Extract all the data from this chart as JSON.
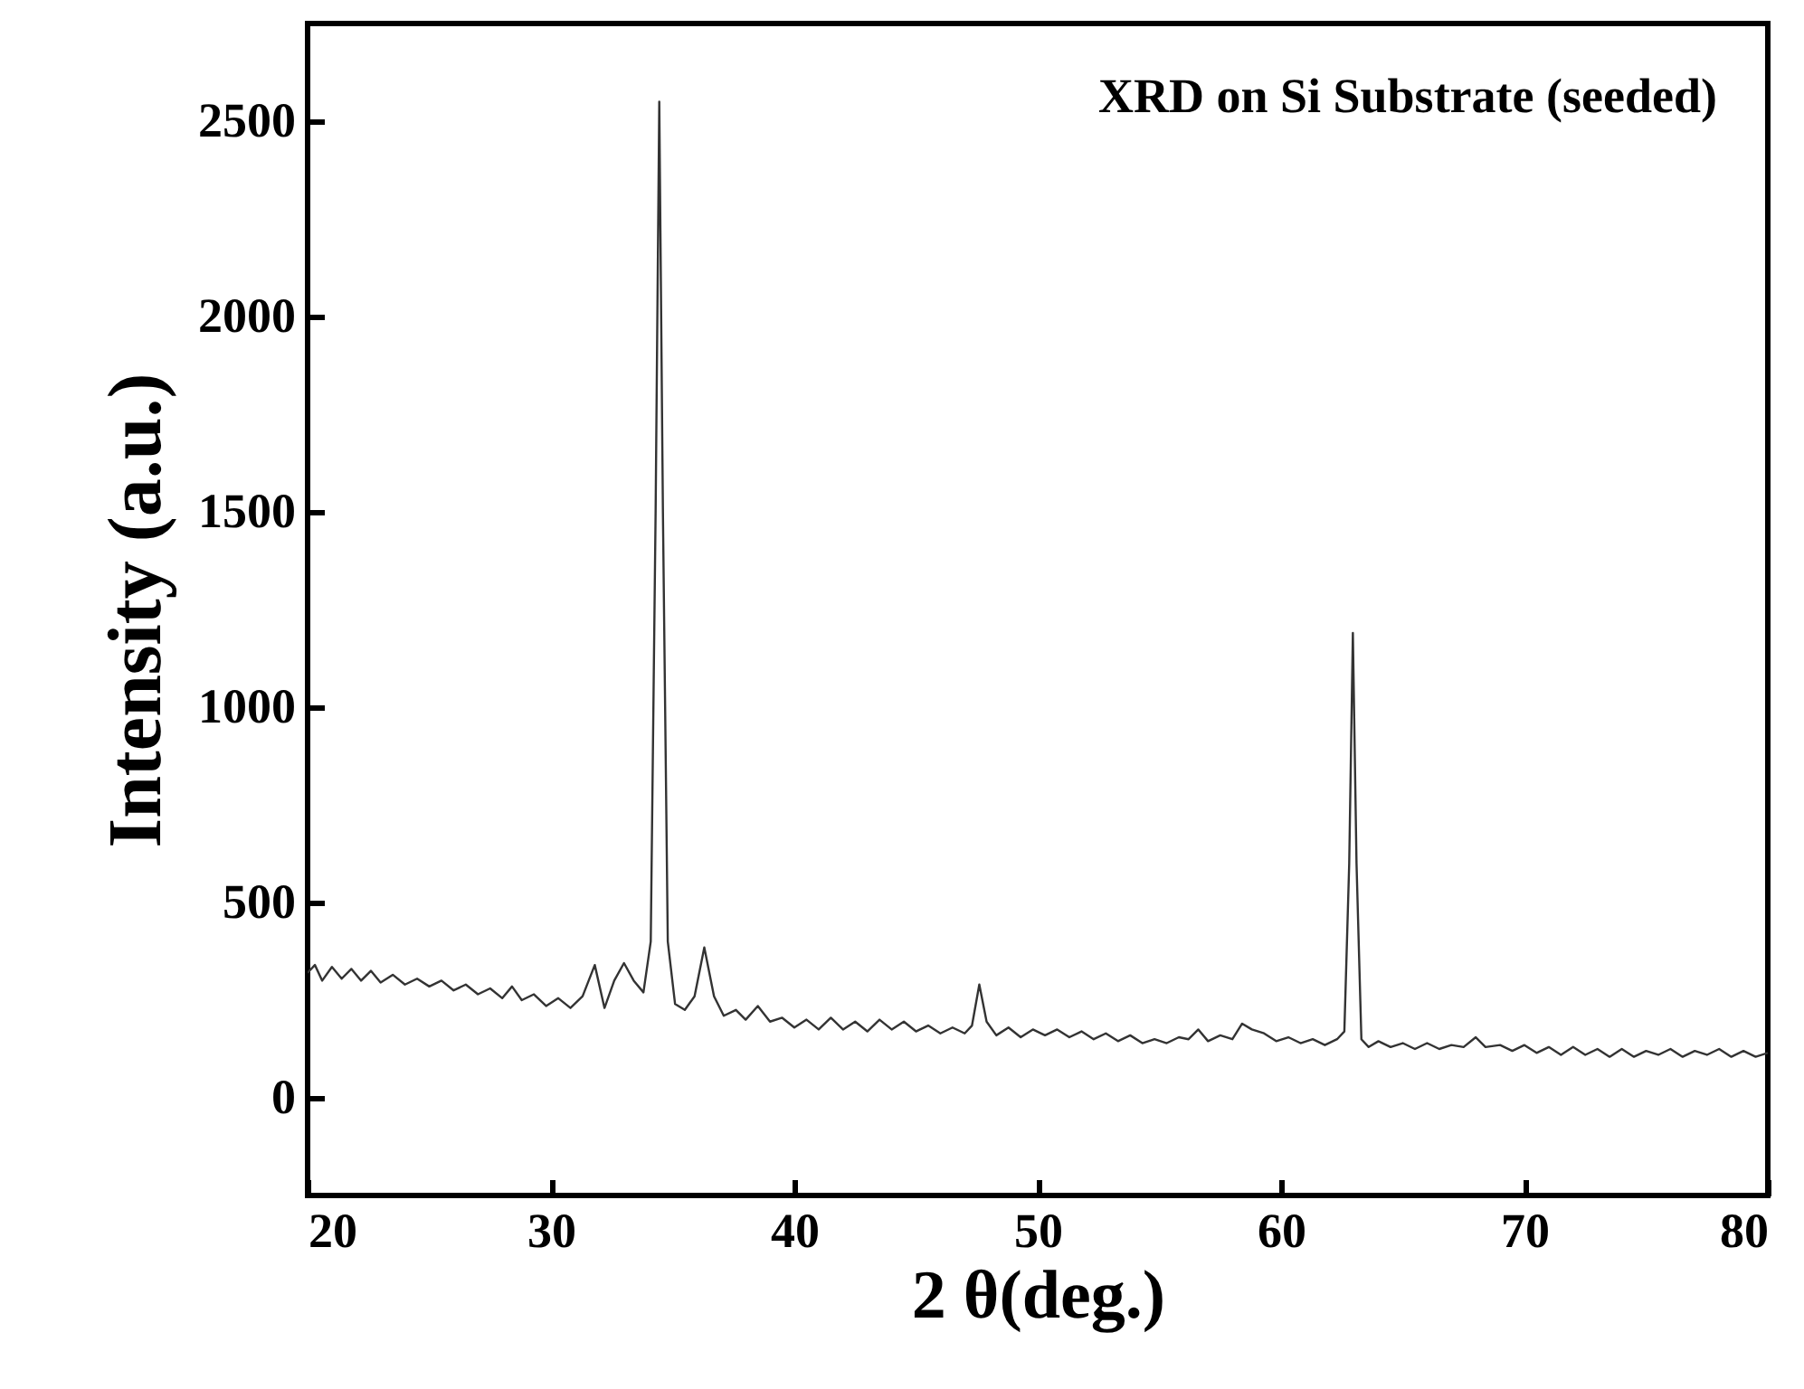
{
  "chart_data": {
    "type": "line",
    "xlabel": "2 θ(deg.)",
    "ylabel": "Intensity (a.u.)",
    "annotations": [
      "XRD on Si Substrate (seeded)"
    ],
    "xlim": [
      20,
      80
    ],
    "xticks": [
      20,
      30,
      40,
      50,
      60,
      70,
      80
    ],
    "ylim": [
      -250,
      2750
    ],
    "yticks": [
      0,
      500,
      1000,
      1500,
      2000,
      2500
    ],
    "series": [
      {
        "color": "#333333",
        "x": [
          20,
          20.3,
          20.6,
          21,
          21.4,
          21.8,
          22.2,
          22.6,
          23,
          23.5,
          24,
          24.5,
          25,
          25.5,
          26,
          26.5,
          27,
          27.5,
          28,
          28.4,
          28.8,
          29.3,
          29.8,
          30.3,
          30.8,
          31.3,
          31.8,
          32.2,
          32.6,
          33,
          33.4,
          33.8,
          34.1,
          34.3,
          34.45,
          34.6,
          34.8,
          35.1,
          35.5,
          35.9,
          36.3,
          36.7,
          37.1,
          37.6,
          38,
          38.5,
          39,
          39.5,
          40,
          40.5,
          41,
          41.5,
          42,
          42.5,
          43,
          43.5,
          44,
          44.5,
          45,
          45.5,
          46,
          46.5,
          47,
          47.3,
          47.6,
          47.9,
          48.3,
          48.8,
          49.3,
          49.8,
          50.3,
          50.8,
          51.3,
          51.8,
          52.3,
          52.8,
          53.3,
          53.8,
          54.3,
          54.8,
          55.3,
          55.8,
          56.2,
          56.6,
          57,
          57.5,
          58,
          58.4,
          58.8,
          59.3,
          59.8,
          60.3,
          60.8,
          61.3,
          61.8,
          62.3,
          62.6,
          62.8,
          62.95,
          63.1,
          63.3,
          63.6,
          64,
          64.5,
          65,
          65.5,
          66,
          66.5,
          67,
          67.5,
          68,
          68.4,
          69,
          69.5,
          70,
          70.5,
          71,
          71.5,
          72,
          72.5,
          73,
          73.5,
          74,
          74.5,
          75,
          75.5,
          76,
          76.5,
          77,
          77.5,
          78,
          78.5,
          79,
          79.5,
          80
        ],
        "values": [
          320,
          340,
          300,
          335,
          305,
          330,
          300,
          325,
          295,
          315,
          290,
          305,
          285,
          300,
          275,
          290,
          265,
          280,
          255,
          285,
          250,
          265,
          235,
          255,
          230,
          260,
          340,
          230,
          300,
          345,
          300,
          270,
          400,
          1500,
          2550,
          1500,
          400,
          240,
          225,
          260,
          385,
          260,
          210,
          225,
          200,
          235,
          195,
          205,
          180,
          200,
          175,
          205,
          175,
          195,
          170,
          200,
          175,
          195,
          170,
          185,
          165,
          180,
          165,
          185,
          290,
          195,
          160,
          180,
          155,
          175,
          160,
          175,
          155,
          170,
          150,
          165,
          145,
          160,
          140,
          150,
          140,
          155,
          150,
          175,
          145,
          160,
          150,
          190,
          175,
          165,
          145,
          155,
          140,
          150,
          135,
          150,
          170,
          600,
          1190,
          600,
          150,
          130,
          145,
          130,
          140,
          125,
          140,
          125,
          135,
          130,
          155,
          130,
          135,
          120,
          135,
          115,
          130,
          110,
          130,
          110,
          125,
          105,
          125,
          105,
          120,
          110,
          125,
          105,
          120,
          110,
          125,
          105,
          120,
          105,
          115
        ]
      }
    ]
  }
}
